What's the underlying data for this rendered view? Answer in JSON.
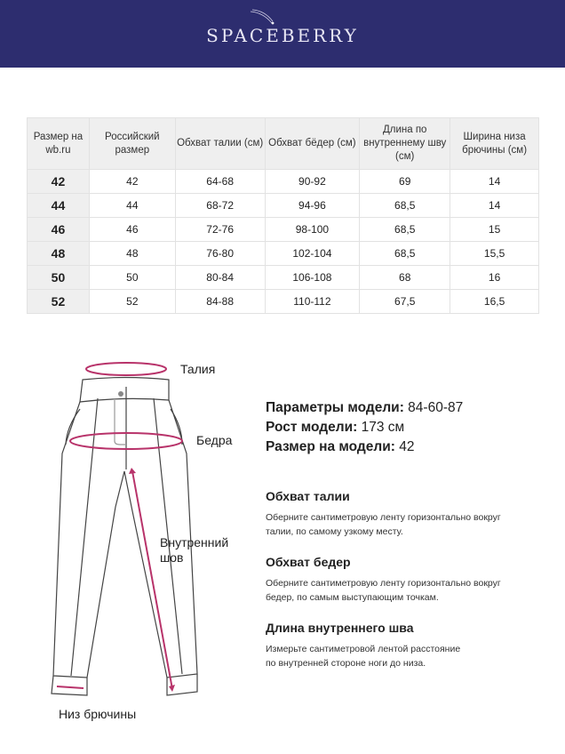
{
  "brand": "SPACEBERRY",
  "table": {
    "headers": [
      "Размер на wb.ru",
      "Российский размер",
      "Обхват талии (см)",
      "Обхват бёдер (см)",
      "Длина по внутреннему шву (см)",
      "Ширина низа брючины (см)"
    ],
    "rows": [
      [
        "42",
        "42",
        "64-68",
        "90-92",
        "69",
        "14"
      ],
      [
        "44",
        "44",
        "68-72",
        "94-96",
        "68,5",
        "14"
      ],
      [
        "46",
        "46",
        "72-76",
        "98-100",
        "68,5",
        "15"
      ],
      [
        "48",
        "48",
        "76-80",
        "102-104",
        "68,5",
        "15,5"
      ],
      [
        "50",
        "50",
        "80-84",
        "106-108",
        "68",
        "16"
      ],
      [
        "52",
        "52",
        "84-88",
        "110-112",
        "67,5",
        "16,5"
      ]
    ]
  },
  "diagram": {
    "waist": "Талия",
    "hips": "Бедра",
    "inseam_1": "Внутренний",
    "inseam_2": "шов",
    "hem": "Низ брючины"
  },
  "model": {
    "params_label": "Параметры модели:",
    "params_value": "84-60-87",
    "height_label": "Рост модели:",
    "height_value": "173 см",
    "size_label": "Размер на модели:",
    "size_value": "42"
  },
  "sections": [
    {
      "title": "Обхват талии",
      "line1": "Оберните сантиметровую ленту горизонтально вокруг",
      "line2": "талии, по самому узкому месту."
    },
    {
      "title": "Обхват бедер",
      "line1": "Оберните сантиметровую ленту горизонтально вокруг",
      "line2": "бедер, по самым выступающим точкам."
    },
    {
      "title": "Длина внутреннего шва",
      "line1": "Измерьте сантиметровой лентой расстояние",
      "line2": "по внутренней стороне ноги до низа."
    }
  ],
  "colors": {
    "header_bg": "#2d2d6f",
    "accent": "#b8336a"
  }
}
